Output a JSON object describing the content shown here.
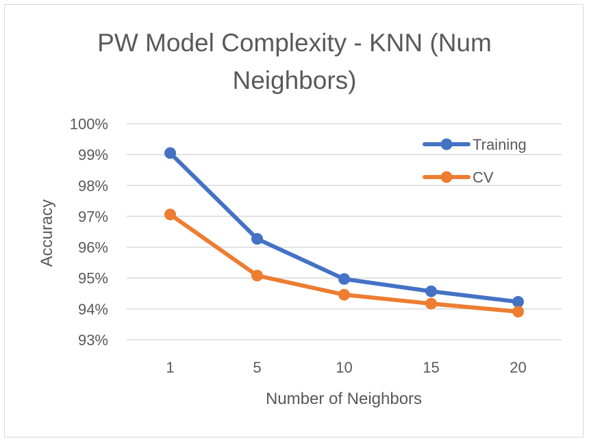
{
  "chart_data": {
    "type": "line",
    "title_lines": [
      "PW Model Complexity - KNN (Num",
      "Neighbors)"
    ],
    "xlabel": "Number of Neighbors",
    "ylabel": "Accuracy",
    "categories": [
      "1",
      "5",
      "10",
      "15",
      "20"
    ],
    "yticks": [
      "93%",
      "94%",
      "95%",
      "96%",
      "97%",
      "98%",
      "99%",
      "100%"
    ],
    "ylim": [
      0.93,
      1.0
    ],
    "grid": true,
    "legend_position": "top-right",
    "series": [
      {
        "name": "Training",
        "color": "#4472C4",
        "values": [
          0.9905,
          0.9627,
          0.9497,
          0.9457,
          0.9423
        ]
      },
      {
        "name": "CV",
        "color": "#ED7D31",
        "values": [
          0.9706,
          0.9508,
          0.9446,
          0.9417,
          0.9391
        ]
      }
    ]
  }
}
